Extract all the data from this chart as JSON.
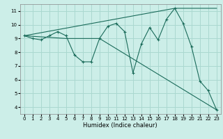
{
  "xlabel": "Humidex (Indice chaleur)",
  "ylabel": "",
  "bg_color": "#cceee8",
  "grid_color": "#aad8d0",
  "line_color": "#1a6b5a",
  "xlim": [
    -0.5,
    23.5
  ],
  "ylim": [
    3.5,
    11.5
  ],
  "xticks": [
    0,
    1,
    2,
    3,
    4,
    5,
    6,
    7,
    8,
    9,
    10,
    11,
    12,
    13,
    14,
    15,
    16,
    17,
    18,
    19,
    20,
    21,
    22,
    23
  ],
  "yticks": [
    4,
    5,
    6,
    7,
    8,
    9,
    10,
    11
  ],
  "series1_x": [
    0,
    1,
    2,
    3,
    4,
    5,
    6,
    7,
    8,
    9,
    10,
    11,
    12,
    13,
    14,
    15,
    16,
    17,
    18,
    19,
    20,
    21,
    22,
    23
  ],
  "series1_y": [
    9.2,
    9.0,
    8.9,
    9.2,
    9.5,
    9.2,
    7.8,
    7.3,
    7.3,
    9.0,
    9.9,
    10.1,
    9.5,
    6.5,
    8.6,
    9.8,
    8.9,
    10.4,
    11.2,
    10.1,
    8.4,
    5.9,
    5.2,
    3.8
  ],
  "series2_x": [
    0,
    5,
    9,
    23
  ],
  "series2_y": [
    9.2,
    9.0,
    9.0,
    3.8
  ],
  "series3_x": [
    0,
    18,
    23
  ],
  "series3_y": [
    9.2,
    11.2,
    11.2
  ]
}
